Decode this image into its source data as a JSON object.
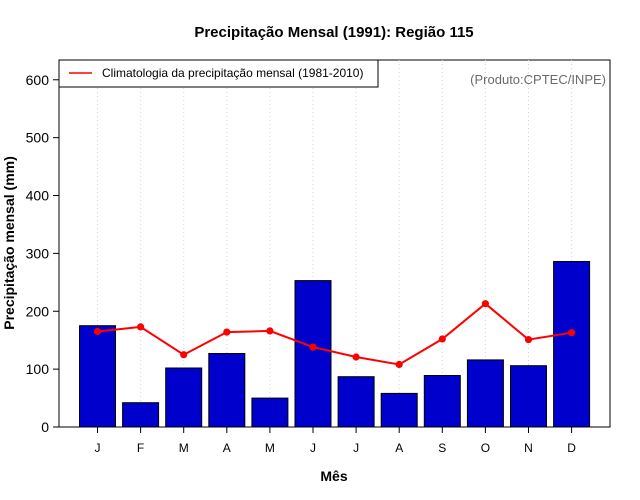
{
  "chart_data": {
    "type": "bar",
    "title": "Precipitação Mensal (1991): Região 115",
    "xlabel": "Mês",
    "ylabel": "Precipitação mensal (mm)",
    "ylim": [
      0,
      640
    ],
    "yticks": [
      0,
      100,
      200,
      300,
      400,
      500,
      600
    ],
    "categories": [
      "J",
      "F",
      "M",
      "A",
      "M",
      "J",
      "J",
      "A",
      "S",
      "O",
      "N",
      "D"
    ],
    "series": [
      {
        "name": "Precipitação mensal (1991)",
        "type": "bar",
        "color": "#0000CD",
        "values": [
          175,
          42,
          102,
          127,
          50,
          253,
          87,
          58,
          89,
          116,
          106,
          286
        ]
      },
      {
        "name": "Climatologia da precipitação mensal (1981-2010)",
        "type": "line",
        "color": "#FF0000",
        "values": [
          165,
          173,
          125,
          164,
          166,
          138,
          121,
          108,
          152,
          213,
          151,
          163
        ]
      }
    ],
    "legend": {
      "position": "top-left",
      "label": "Climatologia da precipitação mensal (1981-2010)"
    },
    "source_note": "(Produto:CPTEC/INPE)",
    "grid": "vertical-dotted"
  }
}
